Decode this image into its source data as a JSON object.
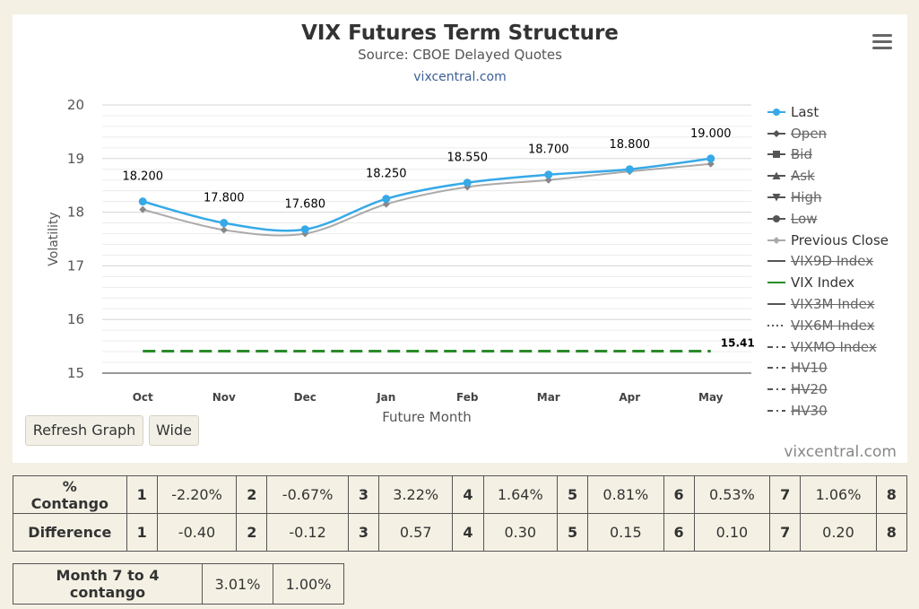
{
  "chart": {
    "title": "VIX Futures Term Structure",
    "subtitle": "Source: CBOE Delayed Quotes",
    "link": "vixcentral.com",
    "menu_icon": "hamburger-menu-icon",
    "watermark": "vixcentral.com"
  },
  "chart_data": {
    "type": "line",
    "xlabel": "Future Month",
    "ylabel": "Volatility",
    "categories": [
      "Oct",
      "Nov",
      "Dec",
      "Jan",
      "Feb",
      "Mar",
      "Apr",
      "May"
    ],
    "ylim": [
      15,
      20
    ],
    "yticks": [
      "15",
      "16",
      "17",
      "18",
      "19",
      "20"
    ],
    "grid": true,
    "legend_position": "right",
    "series": [
      {
        "name": "Last",
        "color": "#36a9e8",
        "values": [
          18.2,
          17.8,
          17.68,
          18.25,
          18.55,
          18.7,
          18.8,
          19.0
        ],
        "labels": [
          "18.200",
          "17.800",
          "17.680",
          "18.250",
          "18.550",
          "18.700",
          "18.800",
          "19.000"
        ]
      },
      {
        "name": "Previous Close",
        "color": "#aaaaaa",
        "values": [
          18.05,
          17.67,
          17.6,
          18.15,
          18.47,
          18.6,
          18.76,
          18.9
        ]
      },
      {
        "name": "VIX Index",
        "color": "#2a8a2a",
        "value": 15.41,
        "label": "15.41"
      }
    ]
  },
  "legend": [
    {
      "label": "Last",
      "symbol": "circle-line",
      "color": "#36a9e8",
      "enabled": true
    },
    {
      "label": "Open",
      "symbol": "diamond-line",
      "color": "#555555",
      "enabled": false
    },
    {
      "label": "Bid",
      "symbol": "square-line",
      "color": "#555555",
      "enabled": false
    },
    {
      "label": "Ask",
      "symbol": "triangle-line",
      "color": "#555555",
      "enabled": false
    },
    {
      "label": "High",
      "symbol": "triangle-down-line",
      "color": "#555555",
      "enabled": false
    },
    {
      "label": "Low",
      "symbol": "circle-line",
      "color": "#555555",
      "enabled": false
    },
    {
      "label": "Previous Close",
      "symbol": "diamond-line",
      "color": "#aaaaaa",
      "enabled": true
    },
    {
      "label": "VIX9D Index",
      "symbol": "solid-line",
      "color": "#555555",
      "enabled": false
    },
    {
      "label": "VIX Index",
      "symbol": "solid-line",
      "color": "#2a8a2a",
      "enabled": true
    },
    {
      "label": "VIX3M Index",
      "symbol": "solid-line",
      "color": "#555555",
      "enabled": false
    },
    {
      "label": "VIX6M Index",
      "symbol": "dotted-line",
      "color": "#555555",
      "enabled": false
    },
    {
      "label": "VIXMO Index",
      "symbol": "dashdot-line",
      "color": "#555555",
      "enabled": false
    },
    {
      "label": "HV10",
      "symbol": "dashdot-line",
      "color": "#555555",
      "enabled": false
    },
    {
      "label": "HV20",
      "symbol": "dashdot-line",
      "color": "#555555",
      "enabled": false
    },
    {
      "label": "HV30",
      "symbol": "dashdot-line",
      "color": "#555555",
      "enabled": false
    }
  ],
  "buttons": {
    "refresh": "Refresh Graph",
    "wide": "Wide"
  },
  "contango_table": {
    "rows": [
      {
        "label": "% Contango",
        "cells": [
          {
            "idx": "1",
            "value": "-2.20%"
          },
          {
            "idx": "2",
            "value": "-0.67%"
          },
          {
            "idx": "3",
            "value": "3.22%"
          },
          {
            "idx": "4",
            "value": "1.64%"
          },
          {
            "idx": "5",
            "value": "0.81%"
          },
          {
            "idx": "6",
            "value": "0.53%"
          },
          {
            "idx": "7",
            "value": "1.06%"
          },
          {
            "idx": "8",
            "value": ""
          }
        ]
      },
      {
        "label": "Difference",
        "cells": [
          {
            "idx": "1",
            "value": "-0.40"
          },
          {
            "idx": "2",
            "value": "-0.12"
          },
          {
            "idx": "3",
            "value": "0.57"
          },
          {
            "idx": "4",
            "value": "0.30"
          },
          {
            "idx": "5",
            "value": "0.15"
          },
          {
            "idx": "6",
            "value": "0.10"
          },
          {
            "idx": "7",
            "value": "0.20"
          },
          {
            "idx": "8",
            "value": ""
          }
        ]
      }
    ]
  },
  "month_table": {
    "label": "Month 7 to 4 contango",
    "value1": "3.01%",
    "value2": "1.00%"
  }
}
